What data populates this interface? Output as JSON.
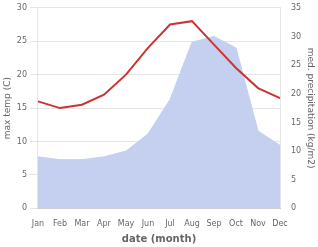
{
  "chart_data": {
    "type": "line",
    "categories": [
      "Jan",
      "Feb",
      "Mar",
      "Apr",
      "May",
      "Jun",
      "Jul",
      "Aug",
      "Sep",
      "Oct",
      "Nov",
      "Dec"
    ],
    "series": [
      {
        "type": "area",
        "axis": "y2",
        "color": "#c5d0f0",
        "values": [
          9.0,
          8.5,
          8.5,
          9.0,
          10.0,
          13.0,
          19.0,
          29.0,
          30.0,
          28.0,
          13.5,
          11.0
        ]
      },
      {
        "type": "line",
        "color": "#cc3333",
        "values": [
          16.0,
          15.0,
          15.5,
          17.0,
          20.0,
          24.0,
          27.5,
          28.0,
          24.5,
          21.0,
          18.0,
          16.5
        ]
      }
    ],
    "xlabel": "date (month)",
    "ylabel": "max temp (C)",
    "y2label": "med. precipitation (kg/m2)",
    "ylim": [
      0,
      30
    ],
    "yticks": [
      0,
      5,
      10,
      15,
      20,
      25,
      30
    ],
    "y2lim": [
      0,
      35
    ],
    "y2ticks": [
      0,
      5,
      10,
      15,
      20,
      25,
      30,
      35
    ],
    "grid": true
  }
}
